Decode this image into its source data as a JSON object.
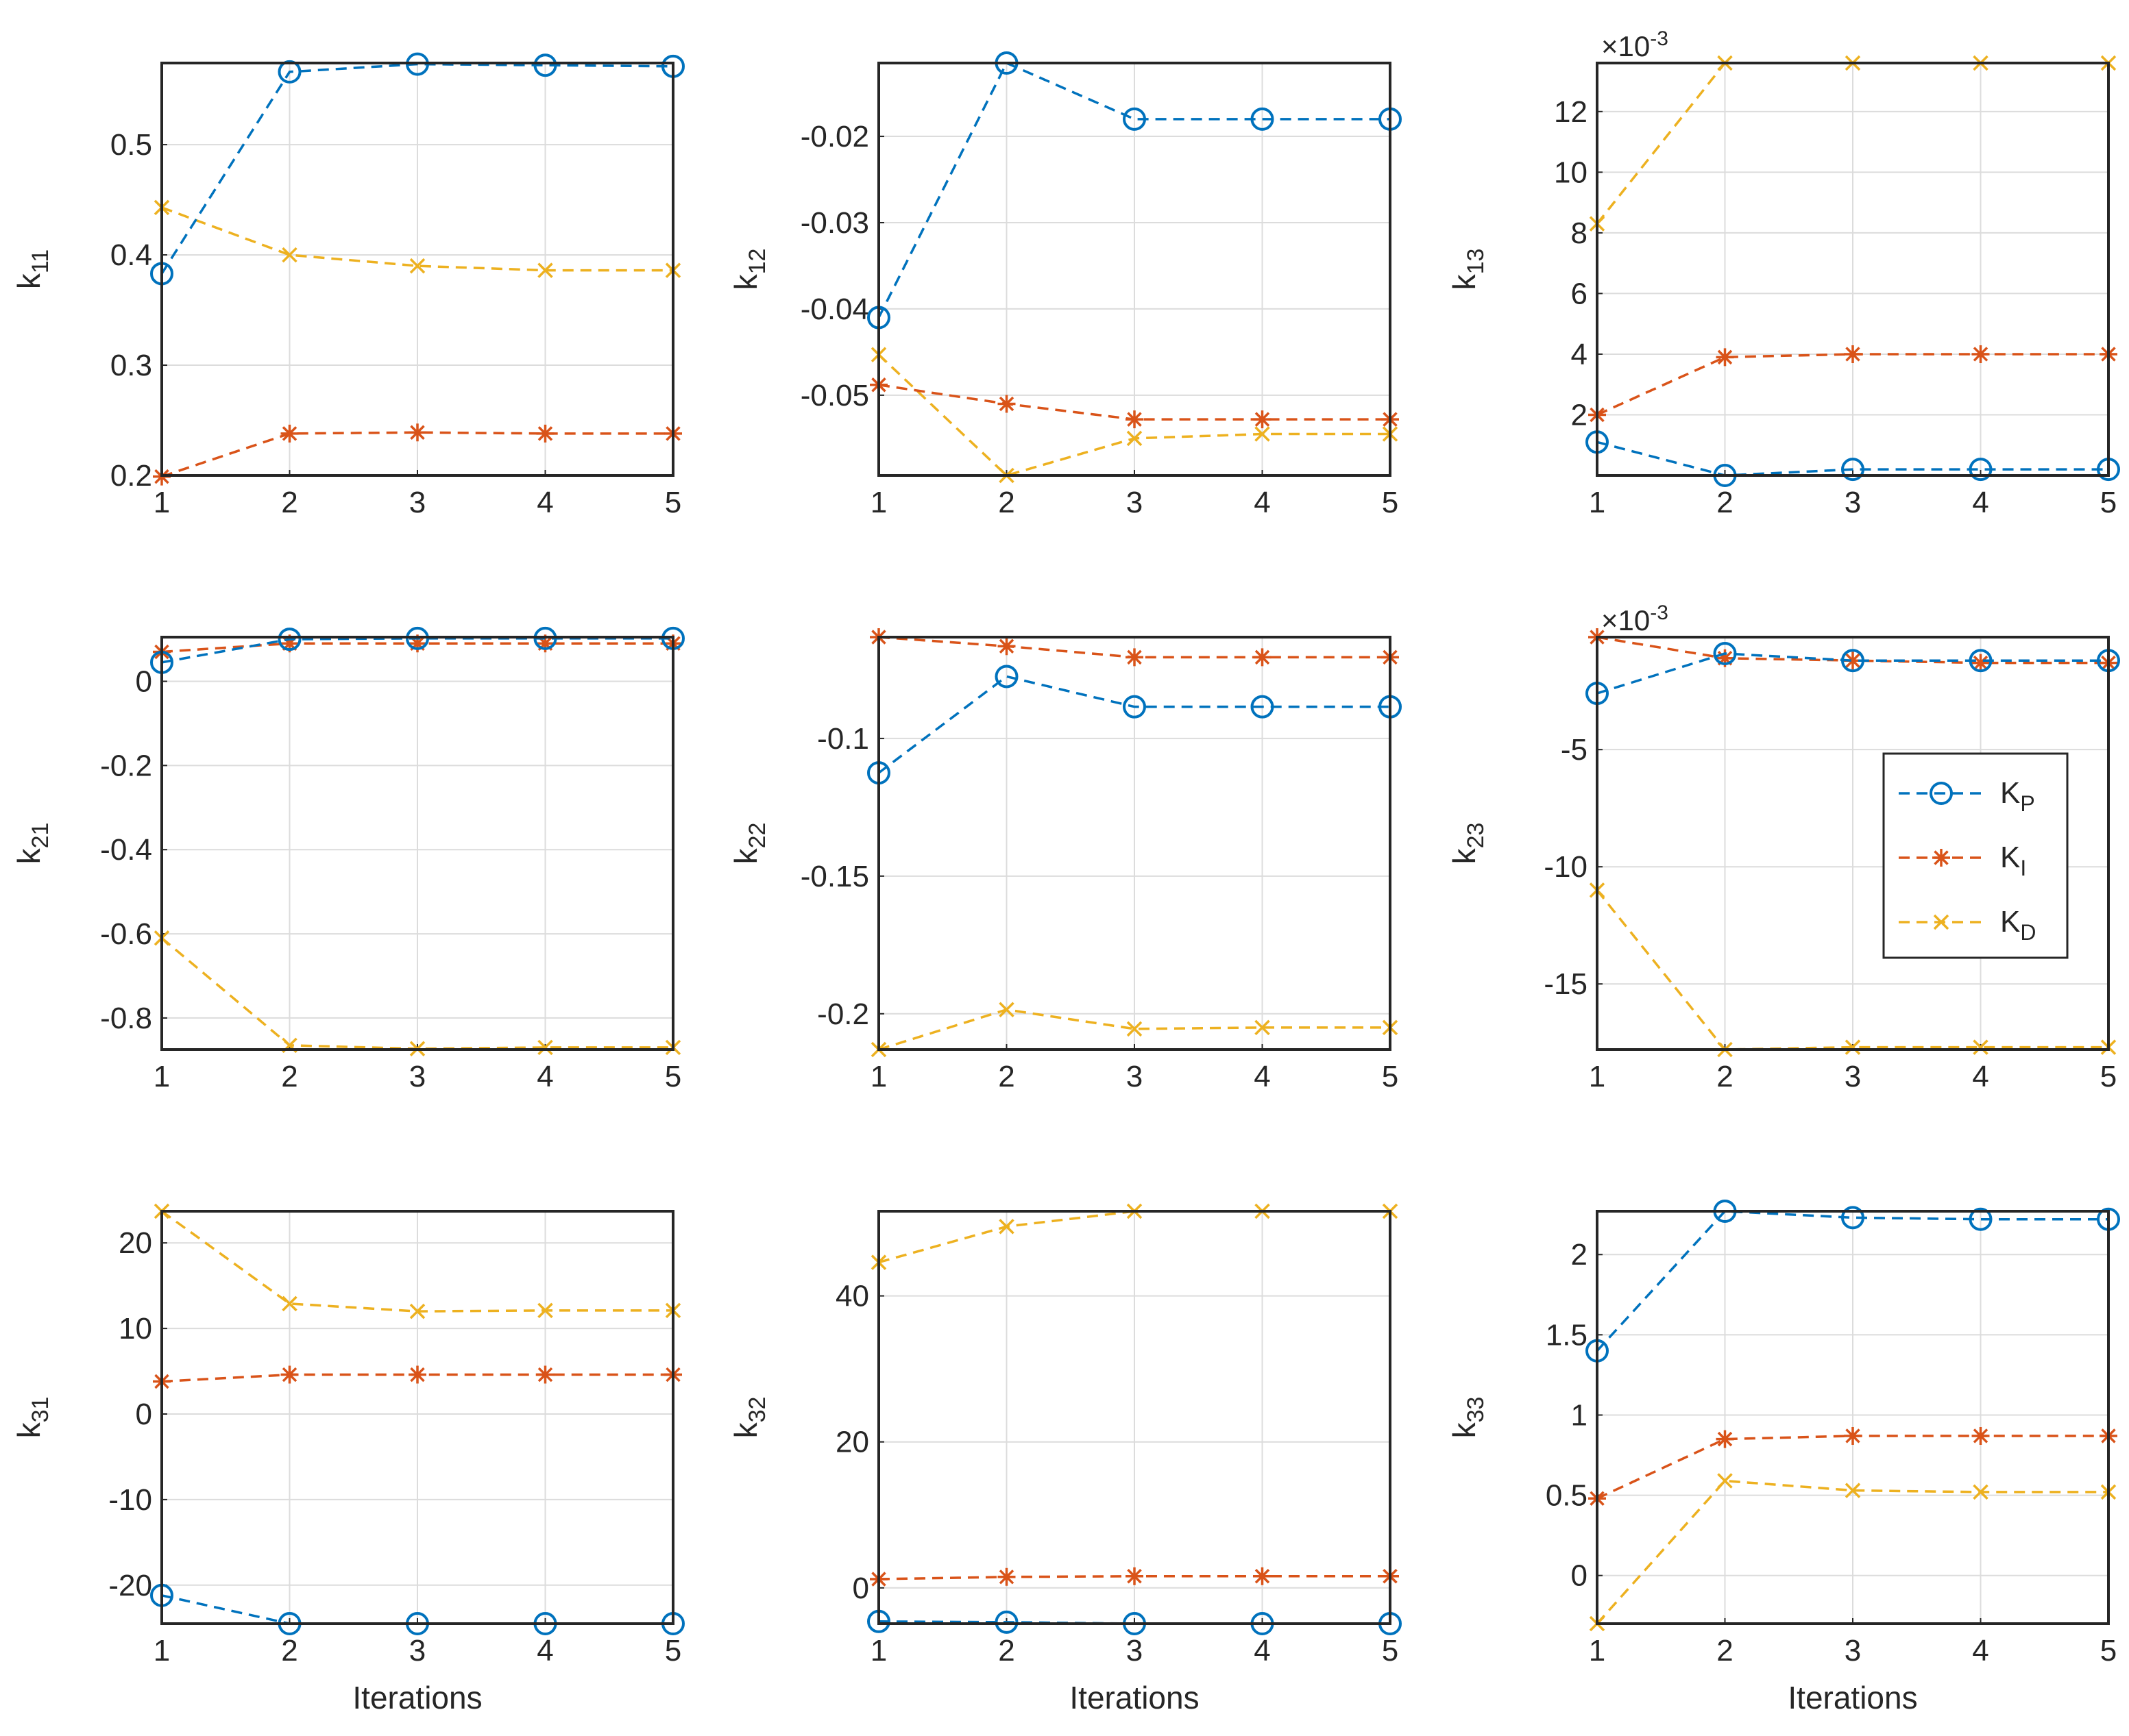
{
  "figure": {
    "xlabel": "Iterations",
    "colors": {
      "KP": "#0072BD",
      "KI": "#D95319",
      "KD": "#EDB120",
      "grid": "#dcdcdc",
      "axis": "#262626"
    },
    "legend": {
      "placement": "right, inside k23 subplot",
      "entries": [
        {
          "key": "KP",
          "base": "K",
          "sub": "P"
        },
        {
          "key": "KI",
          "base": "K",
          "sub": "I"
        },
        {
          "key": "KD",
          "base": "K",
          "sub": "D"
        }
      ]
    }
  },
  "chart_data": [
    {
      "type": "line",
      "id": "k11",
      "ylabel_base": "k",
      "ylabel_sub": "11",
      "xlabel": "",
      "x": [
        1,
        2,
        3,
        4,
        5
      ],
      "xlim": [
        1,
        5
      ],
      "ylim": [
        0.2,
        0.574
      ],
      "yticks": [
        0.2,
        0.3,
        0.4,
        0.5
      ],
      "ytick_labels": [
        "0.2",
        "0.3",
        "0.4",
        "0.5"
      ],
      "exponent": "",
      "series": [
        {
          "name": "KP",
          "values": [
            0.383,
            0.566,
            0.573,
            0.572,
            0.571
          ]
        },
        {
          "name": "KI",
          "values": [
            0.199,
            0.238,
            0.239,
            0.238,
            0.238
          ]
        },
        {
          "name": "KD",
          "values": [
            0.443,
            0.4,
            0.39,
            0.386,
            0.386
          ]
        }
      ]
    },
    {
      "type": "line",
      "id": "k12",
      "ylabel_base": "k",
      "ylabel_sub": "12",
      "xlabel": "",
      "x": [
        1,
        2,
        3,
        4,
        5
      ],
      "xlim": [
        1,
        5
      ],
      "ylim": [
        -0.0593,
        -0.0115
      ],
      "yticks": [
        -0.05,
        -0.04,
        -0.03,
        -0.02
      ],
      "ytick_labels": [
        "-0.05",
        "-0.04",
        "-0.03",
        "-0.02"
      ],
      "exponent": "",
      "series": [
        {
          "name": "KP",
          "values": [
            -0.041,
            -0.0115,
            -0.018,
            -0.018,
            -0.018
          ]
        },
        {
          "name": "KI",
          "values": [
            -0.0488,
            -0.051,
            -0.0528,
            -0.0528,
            -0.0528
          ]
        },
        {
          "name": "KD",
          "values": [
            -0.0453,
            -0.0593,
            -0.055,
            -0.0545,
            -0.0545
          ]
        }
      ]
    },
    {
      "type": "line",
      "id": "k13",
      "ylabel_base": "k",
      "ylabel_sub": "13",
      "xlabel": "",
      "x": [
        1,
        2,
        3,
        4,
        5
      ],
      "xlim": [
        1,
        5
      ],
      "ylim": [
        0.0,
        13.6
      ],
      "yticks": [
        2,
        4,
        6,
        8,
        10,
        12
      ],
      "ytick_labels": [
        "2",
        "4",
        "6",
        "8",
        "10",
        "12"
      ],
      "exponent": "-3",
      "series": [
        {
          "name": "KP",
          "values": [
            1.1,
            0.0,
            0.2,
            0.2,
            0.2
          ]
        },
        {
          "name": "KI",
          "values": [
            2.0,
            3.9,
            4.0,
            4.0,
            4.0
          ]
        },
        {
          "name": "KD",
          "values": [
            8.3,
            13.6,
            13.6,
            13.6,
            13.6
          ]
        }
      ]
    },
    {
      "type": "line",
      "id": "k21",
      "ylabel_base": "k",
      "ylabel_sub": "21",
      "xlabel": "",
      "x": [
        1,
        2,
        3,
        4,
        5
      ],
      "xlim": [
        1,
        5
      ],
      "ylim": [
        -0.875,
        0.105
      ],
      "yticks": [
        -0.8,
        -0.6,
        -0.4,
        -0.2,
        0
      ],
      "ytick_labels": [
        "-0.8",
        "-0.6",
        "-0.4",
        "-0.2",
        "0"
      ],
      "exponent": "",
      "series": [
        {
          "name": "KP",
          "values": [
            0.045,
            0.1,
            0.102,
            0.102,
            0.102
          ]
        },
        {
          "name": "KI",
          "values": [
            0.07,
            0.09,
            0.09,
            0.09,
            0.09
          ]
        },
        {
          "name": "KD",
          "values": [
            -0.61,
            -0.865,
            -0.873,
            -0.87,
            -0.87
          ]
        }
      ]
    },
    {
      "type": "line",
      "id": "k22",
      "ylabel_base": "k",
      "ylabel_sub": "22",
      "xlabel": "",
      "x": [
        1,
        2,
        3,
        4,
        5
      ],
      "xlim": [
        1,
        5
      ],
      "ylim": [
        -0.213,
        -0.0632
      ],
      "yticks": [
        -0.2,
        -0.15,
        -0.1
      ],
      "ytick_labels": [
        "-0.2",
        "-0.15",
        "-0.1"
      ],
      "exponent": "",
      "series": [
        {
          "name": "KP",
          "values": [
            -0.1125,
            -0.0775,
            -0.0885,
            -0.0885,
            -0.0885
          ]
        },
        {
          "name": "KI",
          "values": [
            -0.0632,
            -0.0665,
            -0.0705,
            -0.0705,
            -0.0705
          ]
        },
        {
          "name": "KD",
          "values": [
            -0.213,
            -0.1985,
            -0.2055,
            -0.205,
            -0.205
          ]
        }
      ]
    },
    {
      "type": "line",
      "id": "k23",
      "ylabel_base": "k",
      "ylabel_sub": "23",
      "xlabel": "",
      "x": [
        1,
        2,
        3,
        4,
        5
      ],
      "xlim": [
        1,
        5
      ],
      "ylim": [
        -17.8,
        -0.2
      ],
      "yticks": [
        -15,
        -10,
        -5
      ],
      "ytick_labels": [
        "-15",
        "-10",
        "-5"
      ],
      "exponent": "-3",
      "series": [
        {
          "name": "KP",
          "values": [
            -2.6,
            -0.9,
            -1.2,
            -1.2,
            -1.2
          ]
        },
        {
          "name": "KI",
          "values": [
            -0.2,
            -1.1,
            -1.2,
            -1.3,
            -1.3
          ]
        },
        {
          "name": "KD",
          "values": [
            -11.0,
            -17.8,
            -17.7,
            -17.7,
            -17.7
          ]
        }
      ]
    },
    {
      "type": "line",
      "id": "k31",
      "ylabel_base": "k",
      "ylabel_sub": "31",
      "xlabel": "Iterations",
      "x": [
        1,
        2,
        3,
        4,
        5
      ],
      "xlim": [
        1,
        5
      ],
      "ylim": [
        -24.5,
        23.7
      ],
      "yticks": [
        -20,
        -10,
        0,
        10,
        20
      ],
      "ytick_labels": [
        "-20",
        "-10",
        "0",
        "10",
        "20"
      ],
      "exponent": "",
      "series": [
        {
          "name": "KP",
          "values": [
            -21.2,
            -24.5,
            -24.5,
            -24.5,
            -24.5
          ]
        },
        {
          "name": "KI",
          "values": [
            3.8,
            4.6,
            4.6,
            4.6,
            4.6
          ]
        },
        {
          "name": "KD",
          "values": [
            23.7,
            12.9,
            12.0,
            12.1,
            12.1
          ]
        }
      ]
    },
    {
      "type": "line",
      "id": "k32",
      "ylabel_base": "k",
      "ylabel_sub": "32",
      "xlabel": "Iterations",
      "x": [
        1,
        2,
        3,
        4,
        5
      ],
      "xlim": [
        1,
        5
      ],
      "ylim": [
        -4.9,
        51.6
      ],
      "yticks": [
        0,
        20,
        40
      ],
      "ytick_labels": [
        "0",
        "20",
        "40"
      ],
      "exponent": "",
      "series": [
        {
          "name": "KP",
          "values": [
            -4.6,
            -4.7,
            -4.9,
            -4.9,
            -4.9
          ]
        },
        {
          "name": "KI",
          "values": [
            1.2,
            1.5,
            1.6,
            1.6,
            1.6
          ]
        },
        {
          "name": "KD",
          "values": [
            44.6,
            49.5,
            51.6,
            51.6,
            51.6
          ]
        }
      ]
    },
    {
      "type": "line",
      "id": "k33",
      "ylabel_base": "k",
      "ylabel_sub": "33",
      "xlabel": "Iterations",
      "x": [
        1,
        2,
        3,
        4,
        5
      ],
      "xlim": [
        1,
        5
      ],
      "ylim": [
        -0.3,
        2.27
      ],
      "yticks": [
        0,
        0.5,
        1,
        1.5,
        2
      ],
      "ytick_labels": [
        "0",
        "0.5",
        "1",
        "1.5",
        "2"
      ],
      "exponent": "",
      "series": [
        {
          "name": "KP",
          "values": [
            1.4,
            2.27,
            2.23,
            2.22,
            2.22
          ]
        },
        {
          "name": "KI",
          "values": [
            0.48,
            0.85,
            0.87,
            0.87,
            0.87
          ]
        },
        {
          "name": "KD",
          "values": [
            -0.3,
            0.59,
            0.53,
            0.52,
            0.52
          ]
        }
      ]
    }
  ]
}
